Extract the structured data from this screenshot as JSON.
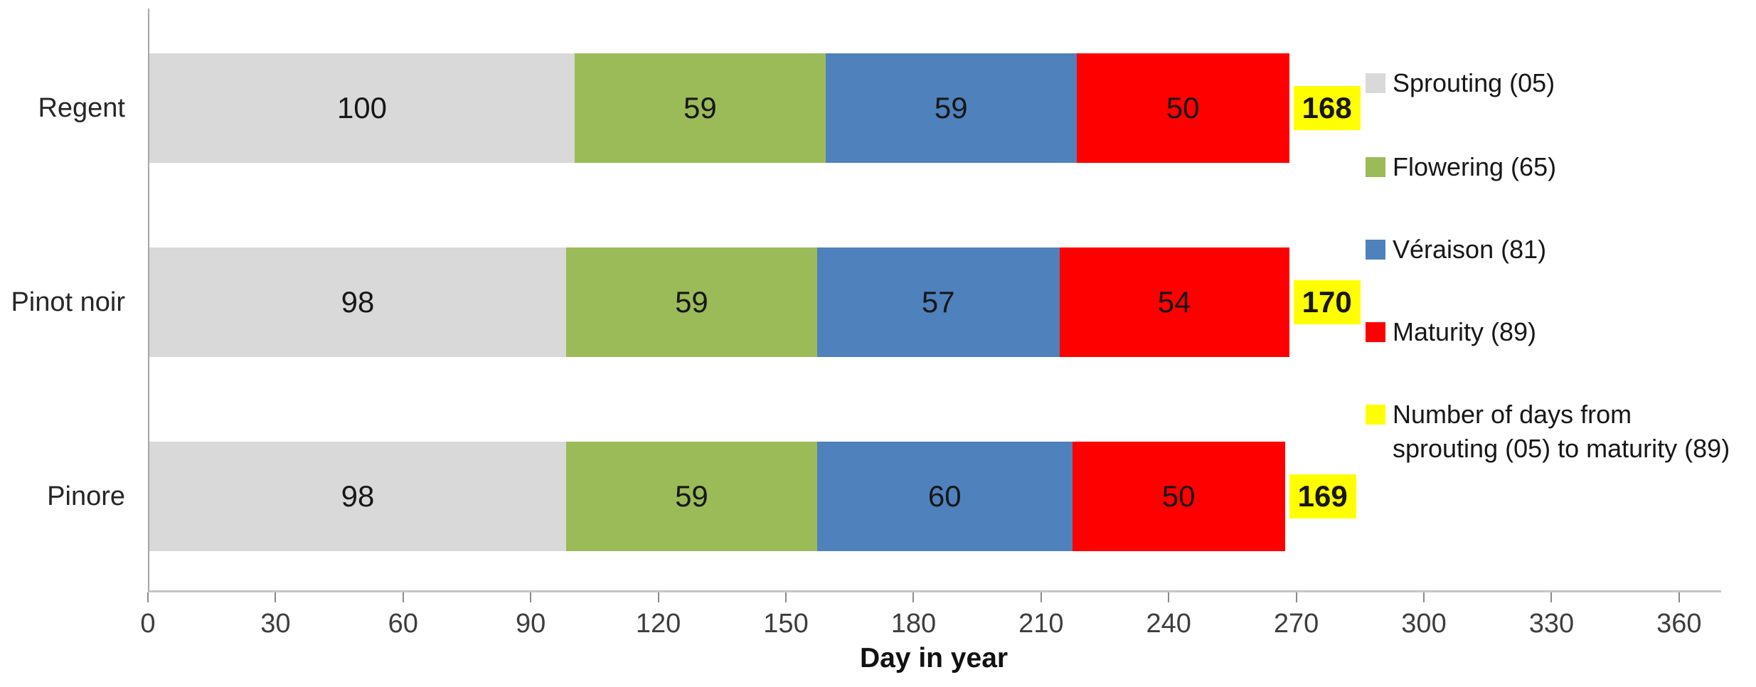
{
  "chart_data": {
    "type": "bar",
    "orientation": "horizontal",
    "stacked": true,
    "title": "",
    "xlabel": "Day in year",
    "xlim": [
      0,
      360
    ],
    "x_ticks": [
      0,
      30,
      60,
      90,
      120,
      150,
      180,
      210,
      240,
      270,
      300,
      330,
      360
    ],
    "grid": false,
    "legend_position": "right",
    "categories": [
      "Regent",
      "Pinot noir",
      "Pinore"
    ],
    "series": [
      {
        "name": "Sprouting (05)",
        "color": "#d9d9d9",
        "values": [
          100,
          98,
          98
        ]
      },
      {
        "name": "Flowering (65)",
        "color": "#9bbb59",
        "values": [
          59,
          59,
          59
        ]
      },
      {
        "name": "Véraison (81)",
        "color": "#4f81bd",
        "values": [
          59,
          57,
          60
        ]
      },
      {
        "name": "Maturity (89)",
        "color": "#ff0000",
        "values": [
          50,
          54,
          50
        ]
      }
    ],
    "totals": {
      "label": "Number of days from sprouting (05) to maturity (89)",
      "color": "#ffff00",
      "values": [
        168,
        170,
        169
      ]
    },
    "legend_items": [
      {
        "label": "Sprouting (05)",
        "color": "#d9d9d9"
      },
      {
        "label": "Flowering (65)",
        "color": "#9bbb59"
      },
      {
        "label": "Véraison (81)",
        "color": "#4f81bd"
      },
      {
        "label": "Maturity (89)",
        "color": "#ff0000"
      },
      {
        "label": "Number of days from\nsprouting (05) to maturity (89)",
        "color": "#ffff00"
      }
    ]
  }
}
